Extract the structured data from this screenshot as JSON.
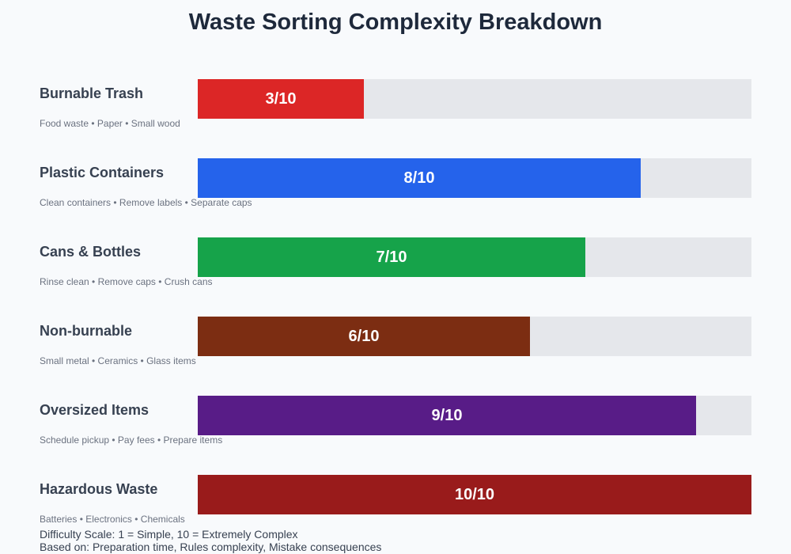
{
  "chart_data": {
    "type": "bar",
    "orientation": "horizontal",
    "title": "Waste Sorting Complexity Breakdown",
    "max": 10,
    "categories": [
      "Burnable Trash",
      "Plastic Containers",
      "Cans & Bottles",
      "Non-burnable",
      "Oversized Items",
      "Hazardous Waste"
    ],
    "items": [
      {
        "label": "Burnable Trash",
        "details": "Food waste • Paper • Small wood",
        "value": 3,
        "value_label": "3/10",
        "color": "#dc2626"
      },
      {
        "label": "Plastic Containers",
        "details": "Clean containers • Remove labels • Separate caps",
        "value": 8,
        "value_label": "8/10",
        "color": "#2563eb"
      },
      {
        "label": "Cans & Bottles",
        "details": "Rinse clean • Remove caps • Crush cans",
        "value": 7,
        "value_label": "7/10",
        "color": "#16a34a"
      },
      {
        "label": "Non-burnable",
        "details": "Small metal • Ceramics • Glass items",
        "value": 6,
        "value_label": "6/10",
        "color": "#7c2d12"
      },
      {
        "label": "Oversized Items",
        "details": "Schedule pickup • Pay fees • Prepare items",
        "value": 9,
        "value_label": "9/10",
        "color": "#581c87"
      },
      {
        "label": "Hazardous Waste",
        "details": "Batteries • Electronics • Chemicals",
        "value": 10,
        "value_label": "10/10",
        "color": "#991b1b"
      }
    ],
    "track_color": "#e5e7eb",
    "footer": [
      "Difficulty Scale: 1 = Simple, 10 = Extremely Complex",
      "Based on: Preparation time, Rules complexity, Mistake consequences"
    ]
  }
}
